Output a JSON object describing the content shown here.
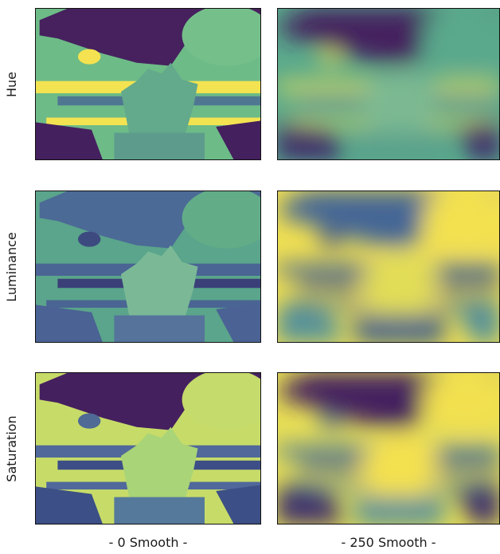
{
  "row_labels": [
    "Hue",
    "Luminance",
    "Saturation"
  ],
  "column_labels": [
    "- 0 Smooth -",
    "- 250 Smooth -"
  ]
}
